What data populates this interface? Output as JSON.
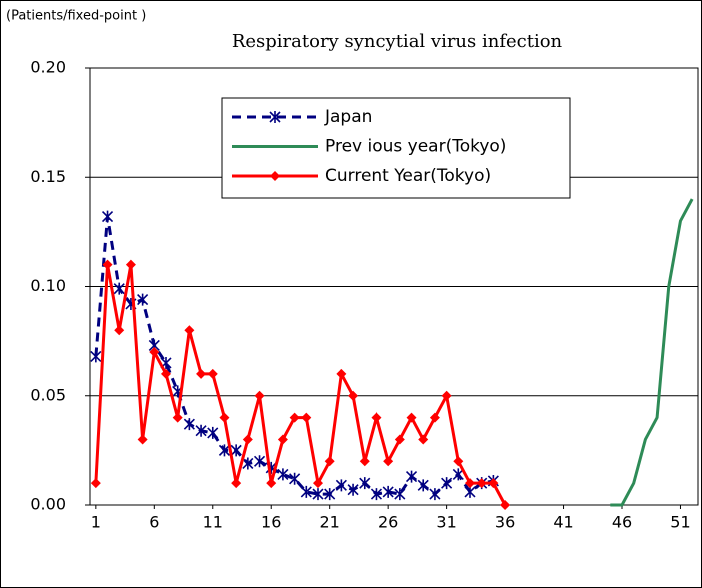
{
  "chart_data": {
    "type": "line",
    "title": "Respiratory syncytial virus infection",
    "y_label": "(Patients/fixed-point )",
    "x": [
      1,
      2,
      3,
      4,
      5,
      6,
      7,
      8,
      9,
      10,
      11,
      12,
      13,
      14,
      15,
      16,
      17,
      18,
      19,
      20,
      21,
      22,
      23,
      24,
      25,
      26,
      27,
      28,
      29,
      30,
      31,
      32,
      33,
      34,
      35,
      36,
      37,
      38,
      39,
      40,
      41,
      42,
      43,
      44,
      45,
      46,
      47,
      48,
      49,
      50,
      51,
      52
    ],
    "xlim": [
      0.5,
      52.5
    ],
    "xticks": [
      1,
      6,
      11,
      16,
      21,
      26,
      31,
      36,
      41,
      46,
      51
    ],
    "ylim": [
      0,
      0.2
    ],
    "yticks": [
      {
        "value": 0,
        "label": "0.00"
      },
      0.05,
      {
        "value": 0.1,
        "label": "0.10"
      },
      0.15,
      {
        "value": 0.2,
        "label": "0.20"
      }
    ],
    "grid": true,
    "legend": "top-center",
    "series": [
      {
        "name": "Japan",
        "color": "#000080",
        "line_style": "dashed",
        "marker": "asterisk",
        "values": [
          0.068,
          0.132,
          0.099,
          0.092,
          0.094,
          0.073,
          0.065,
          0.052,
          0.037,
          0.034,
          0.033,
          0.025,
          0.025,
          0.019,
          0.02,
          0.017,
          0.014,
          0.012,
          0.006,
          0.005,
          0.005,
          0.009,
          0.007,
          0.01,
          0.005,
          0.006,
          0.005,
          0.013,
          0.009,
          0.005,
          0.01,
          0.014,
          0.006,
          0.01,
          0.011,
          null,
          null,
          null,
          null,
          null,
          null,
          null,
          null,
          null,
          null,
          null,
          null,
          null,
          null,
          null,
          null,
          null
        ]
      },
      {
        "name": "Prev ious year(Tokyo)",
        "color": "#2e8b57",
        "line_style": "solid",
        "marker": "none",
        "values": [
          null,
          null,
          null,
          null,
          null,
          null,
          null,
          null,
          null,
          null,
          null,
          null,
          null,
          null,
          null,
          null,
          null,
          null,
          null,
          null,
          null,
          null,
          null,
          null,
          null,
          null,
          null,
          null,
          null,
          null,
          null,
          null,
          null,
          null,
          null,
          null,
          null,
          null,
          null,
          null,
          null,
          null,
          null,
          null,
          0,
          0,
          0.01,
          0.03,
          0.04,
          0.1,
          0.13,
          0.14
        ]
      },
      {
        "name": "Current Year(Tokyo)",
        "color": "#ff0000",
        "line_style": "solid",
        "marker": "diamond",
        "values": [
          0.01,
          0.11,
          0.08,
          0.11,
          0.03,
          0.07,
          0.06,
          0.04,
          0.08,
          0.06,
          0.06,
          0.04,
          0.01,
          0.03,
          0.05,
          0.01,
          0.03,
          0.04,
          0.04,
          0.01,
          0.02,
          0.06,
          0.05,
          0.02,
          0.04,
          0.02,
          0.03,
          0.04,
          0.03,
          0.04,
          0.05,
          0.02,
          0.01,
          0.01,
          0.01,
          0,
          null,
          null,
          null,
          null,
          null,
          null,
          null,
          null,
          null,
          null,
          null,
          null,
          null,
          null,
          null,
          null
        ]
      }
    ]
  }
}
